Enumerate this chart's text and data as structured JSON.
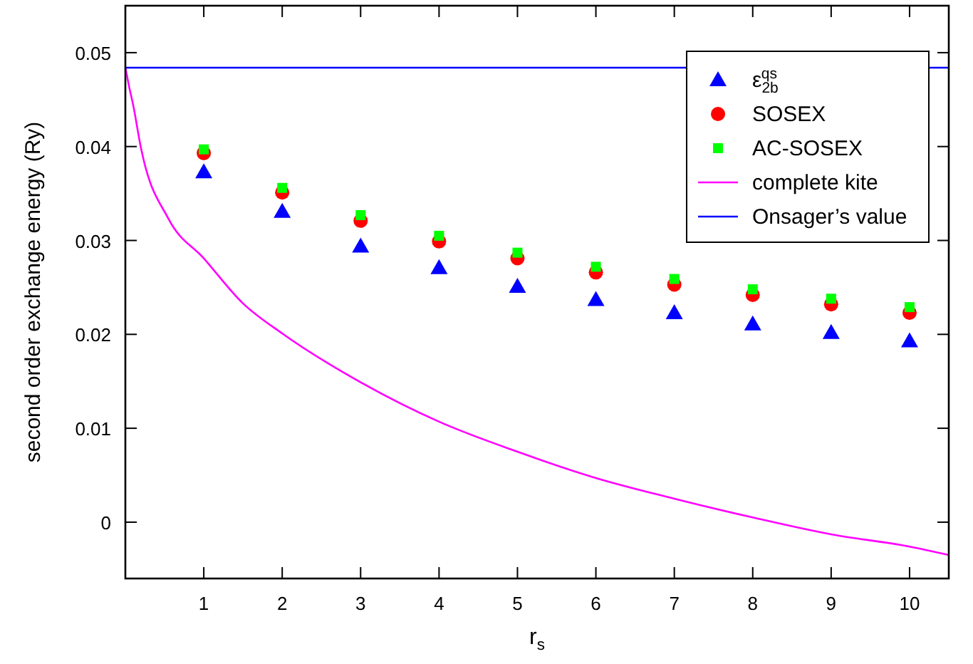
{
  "chart_data": {
    "type": "scatter",
    "xlabel": "r$_{s}$",
    "ylabel": "second order exchange energy (Ry)",
    "x": [
      1,
      2,
      3,
      4,
      5,
      6,
      7,
      8,
      9,
      10
    ],
    "series": [
      {
        "name": "ε$_{2b}$$^{qs}$",
        "color": "#0000ff",
        "marker": "triangle",
        "values": [
          0.0373,
          0.0331,
          0.0294,
          0.0271,
          0.0251,
          0.0237,
          0.0223,
          0.0211,
          0.0202,
          0.0193
        ]
      },
      {
        "name": "SOSEX",
        "color": "#ff0000",
        "marker": "circle",
        "values": [
          0.0393,
          0.0351,
          0.0321,
          0.0299,
          0.0281,
          0.0266,
          0.0253,
          0.0242,
          0.0232,
          0.0223
        ]
      },
      {
        "name": "AC-SOSEX",
        "color": "#00ff00",
        "marker": "square",
        "values": [
          0.0397,
          0.0356,
          0.0327,
          0.0305,
          0.0287,
          0.0272,
          0.0259,
          0.0248,
          0.0238,
          0.0229
        ]
      },
      {
        "name": "complete kite",
        "type": "line",
        "color": "#ff00ff",
        "marker": "none",
        "x": [
          0,
          0.05,
          0.1,
          0.2,
          0.55,
          1,
          1.5,
          2,
          3,
          4,
          5,
          6,
          7,
          8,
          9,
          10,
          10.5
        ],
        "values": [
          0.0484,
          0.0463,
          0.0444,
          0.0398,
          0.0323,
          0.0281,
          0.0233,
          0.0201,
          0.0149,
          0.0107,
          0.0075,
          0.0047,
          0.0025,
          0.0005,
          -0.0013,
          -0.0026,
          -0.0035
        ]
      },
      {
        "name": "Onsager’s value",
        "type": "line",
        "color": "#0000ff",
        "marker": "none",
        "x": [
          0,
          10.5
        ],
        "values": [
          0.0484,
          0.0484
        ]
      }
    ],
    "xlim": [
      0,
      10.5
    ],
    "xticks": [
      1,
      2,
      3,
      4,
      5,
      6,
      7,
      8,
      9,
      10
    ],
    "ylim": [
      -0.006,
      0.055
    ],
    "yticks": [
      0,
      0.01,
      0.02,
      0.03,
      0.04,
      0.05
    ],
    "grid": false,
    "legend": "top right",
    "line_style": "solid"
  }
}
